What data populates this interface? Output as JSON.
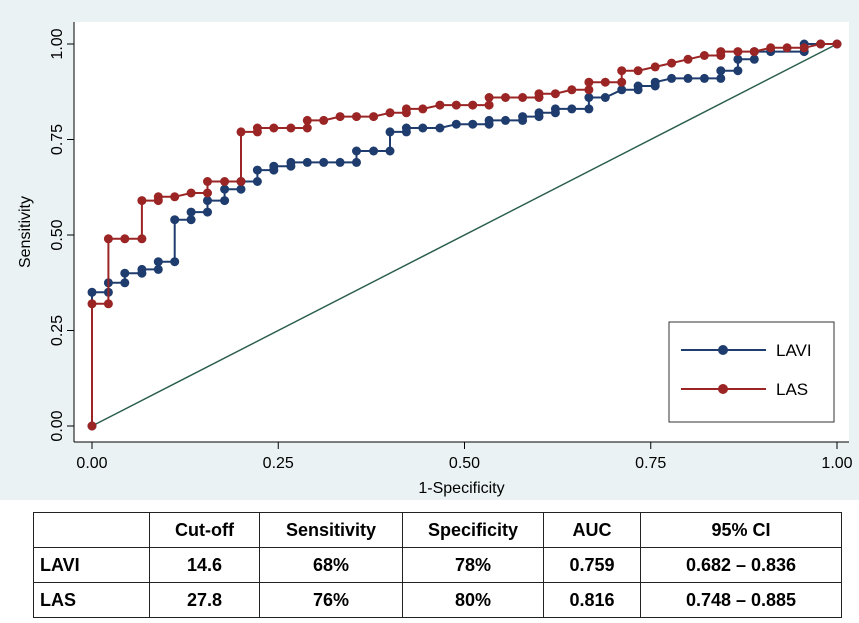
{
  "chart_data": {
    "type": "line",
    "xlabel": "1-Specificity",
    "ylabel": "Sensitivity",
    "xlim": [
      0,
      1
    ],
    "ylim": [
      0,
      1
    ],
    "xticks": [
      "0.00",
      "0.25",
      "0.50",
      "0.75",
      "1.00"
    ],
    "yticks": [
      "0.00",
      "0.25",
      "0.50",
      "0.75",
      "1.00"
    ],
    "grid": false,
    "legend_position": "bottom-right",
    "series": [
      {
        "name": "LAVI",
        "color": "#1f3c6e",
        "points": [
          [
            0,
            0
          ],
          [
            0,
            0.35
          ],
          [
            0.022,
            0.35
          ],
          [
            0.022,
            0.375
          ],
          [
            0.044,
            0.375
          ],
          [
            0.044,
            0.4
          ],
          [
            0.067,
            0.4
          ],
          [
            0.067,
            0.41
          ],
          [
            0.089,
            0.41
          ],
          [
            0.089,
            0.43
          ],
          [
            0.111,
            0.43
          ],
          [
            0.111,
            0.54
          ],
          [
            0.133,
            0.54
          ],
          [
            0.133,
            0.56
          ],
          [
            0.155,
            0.56
          ],
          [
            0.155,
            0.59
          ],
          [
            0.178,
            0.59
          ],
          [
            0.178,
            0.62
          ],
          [
            0.2,
            0.62
          ],
          [
            0.2,
            0.64
          ],
          [
            0.222,
            0.64
          ],
          [
            0.222,
            0.67
          ],
          [
            0.244,
            0.67
          ],
          [
            0.244,
            0.68
          ],
          [
            0.267,
            0.68
          ],
          [
            0.267,
            0.69
          ],
          [
            0.289,
            0.69
          ],
          [
            0.311,
            0.69
          ],
          [
            0.333,
            0.69
          ],
          [
            0.355,
            0.69
          ],
          [
            0.355,
            0.72
          ],
          [
            0.378,
            0.72
          ],
          [
            0.4,
            0.72
          ],
          [
            0.4,
            0.77
          ],
          [
            0.422,
            0.77
          ],
          [
            0.422,
            0.78
          ],
          [
            0.444,
            0.78
          ],
          [
            0.467,
            0.78
          ],
          [
            0.489,
            0.79
          ],
          [
            0.511,
            0.79
          ],
          [
            0.533,
            0.79
          ],
          [
            0.533,
            0.8
          ],
          [
            0.555,
            0.8
          ],
          [
            0.578,
            0.8
          ],
          [
            0.578,
            0.81
          ],
          [
            0.6,
            0.81
          ],
          [
            0.6,
            0.82
          ],
          [
            0.622,
            0.82
          ],
          [
            0.622,
            0.83
          ],
          [
            0.644,
            0.83
          ],
          [
            0.667,
            0.83
          ],
          [
            0.667,
            0.86
          ],
          [
            0.689,
            0.86
          ],
          [
            0.711,
            0.88
          ],
          [
            0.733,
            0.88
          ],
          [
            0.733,
            0.89
          ],
          [
            0.756,
            0.89
          ],
          [
            0.756,
            0.9
          ],
          [
            0.778,
            0.91
          ],
          [
            0.8,
            0.91
          ],
          [
            0.822,
            0.91
          ],
          [
            0.844,
            0.91
          ],
          [
            0.844,
            0.93
          ],
          [
            0.867,
            0.93
          ],
          [
            0.867,
            0.96
          ],
          [
            0.889,
            0.96
          ],
          [
            0.889,
            0.98
          ],
          [
            0.911,
            0.98
          ],
          [
            0.956,
            0.98
          ],
          [
            0.956,
            1.0
          ],
          [
            0.978,
            1.0
          ],
          [
            1.0,
            1.0
          ]
        ]
      },
      {
        "name": "LAS",
        "color": "#9b2424",
        "points": [
          [
            0,
            0
          ],
          [
            0,
            0.32
          ],
          [
            0.022,
            0.32
          ],
          [
            0.022,
            0.49
          ],
          [
            0.044,
            0.49
          ],
          [
            0.067,
            0.49
          ],
          [
            0.067,
            0.59
          ],
          [
            0.089,
            0.59
          ],
          [
            0.089,
            0.6
          ],
          [
            0.111,
            0.6
          ],
          [
            0.133,
            0.61
          ],
          [
            0.155,
            0.61
          ],
          [
            0.155,
            0.64
          ],
          [
            0.178,
            0.64
          ],
          [
            0.2,
            0.64
          ],
          [
            0.2,
            0.77
          ],
          [
            0.222,
            0.77
          ],
          [
            0.222,
            0.78
          ],
          [
            0.244,
            0.78
          ],
          [
            0.267,
            0.78
          ],
          [
            0.289,
            0.78
          ],
          [
            0.289,
            0.8
          ],
          [
            0.311,
            0.8
          ],
          [
            0.333,
            0.81
          ],
          [
            0.355,
            0.81
          ],
          [
            0.378,
            0.81
          ],
          [
            0.4,
            0.82
          ],
          [
            0.422,
            0.82
          ],
          [
            0.422,
            0.83
          ],
          [
            0.444,
            0.83
          ],
          [
            0.467,
            0.84
          ],
          [
            0.489,
            0.84
          ],
          [
            0.511,
            0.84
          ],
          [
            0.533,
            0.84
          ],
          [
            0.533,
            0.86
          ],
          [
            0.555,
            0.86
          ],
          [
            0.578,
            0.86
          ],
          [
            0.6,
            0.86
          ],
          [
            0.6,
            0.87
          ],
          [
            0.622,
            0.87
          ],
          [
            0.644,
            0.88
          ],
          [
            0.667,
            0.88
          ],
          [
            0.667,
            0.9
          ],
          [
            0.689,
            0.9
          ],
          [
            0.711,
            0.9
          ],
          [
            0.711,
            0.93
          ],
          [
            0.733,
            0.93
          ],
          [
            0.756,
            0.94
          ],
          [
            0.778,
            0.95
          ],
          [
            0.8,
            0.96
          ],
          [
            0.822,
            0.97
          ],
          [
            0.844,
            0.97
          ],
          [
            0.844,
            0.98
          ],
          [
            0.867,
            0.98
          ],
          [
            0.889,
            0.98
          ],
          [
            0.911,
            0.99
          ],
          [
            0.933,
            0.99
          ],
          [
            0.956,
            0.99
          ],
          [
            0.978,
            1.0
          ],
          [
            1.0,
            1.0
          ]
        ]
      },
      {
        "name": "",
        "role": "reference",
        "color": "#2b5e4c",
        "points": [
          [
            0,
            0
          ],
          [
            1,
            1
          ]
        ]
      }
    ]
  },
  "table": {
    "columns": [
      "",
      "Cut-off",
      "Sensitivity",
      "Specificity",
      "AUC",
      "95% CI"
    ],
    "rows": [
      [
        "LAVI",
        "14.6",
        "68%",
        "78%",
        "0.759",
        "0.682 – 0.836"
      ],
      [
        "LAS",
        "27.8",
        "76%",
        "80%",
        "0.816",
        "0.748 – 0.885"
      ]
    ]
  }
}
